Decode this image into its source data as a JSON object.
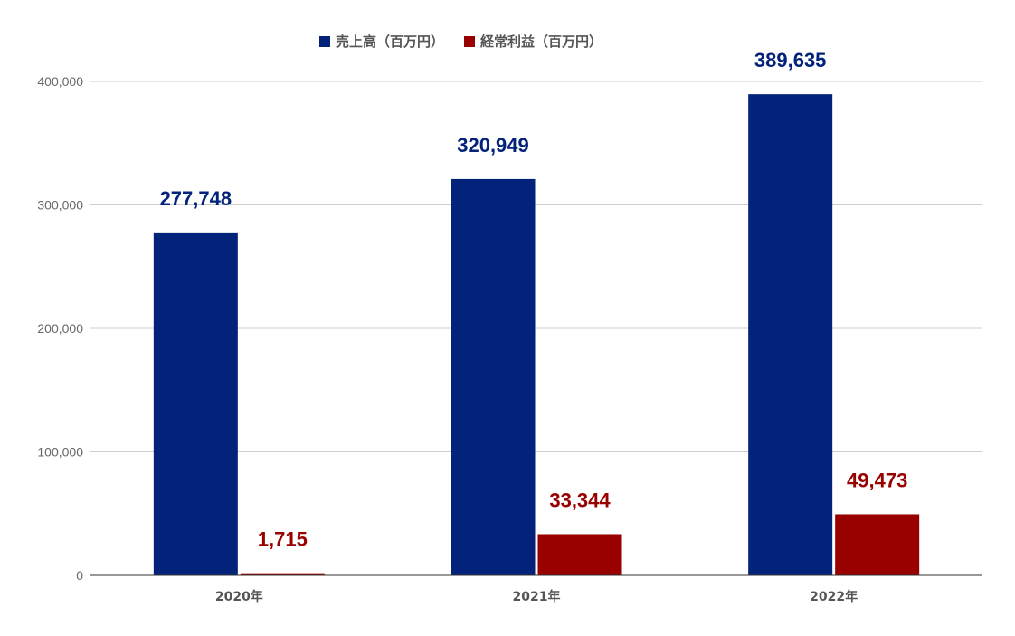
{
  "chart_data": {
    "type": "bar",
    "title": "",
    "xlabel": "",
    "ylabel": "",
    "categories": [
      "2020年",
      "2021年",
      "2022年"
    ],
    "series": [
      {
        "name": "売上高（百万円）",
        "color": "#03237a",
        "values": [
          277748,
          320949,
          389635
        ],
        "labels": [
          "277,748",
          "320,949",
          "389,635"
        ]
      },
      {
        "name": "経常利益（百万円）",
        "color": "#990000",
        "values": [
          1715,
          33344,
          49473
        ],
        "labels": [
          "1,715",
          "33,344",
          "49,473"
        ]
      }
    ],
    "ylim": [
      0,
      400000
    ],
    "yticks": [
      0,
      100000,
      200000,
      300000,
      400000
    ],
    "ytick_labels": [
      "0",
      "100,000",
      "200,000",
      "300,000",
      "400,000"
    ],
    "grid": true,
    "legend_position": "top-center",
    "axis_color": "#333333",
    "grid_color": "#cccccc"
  }
}
